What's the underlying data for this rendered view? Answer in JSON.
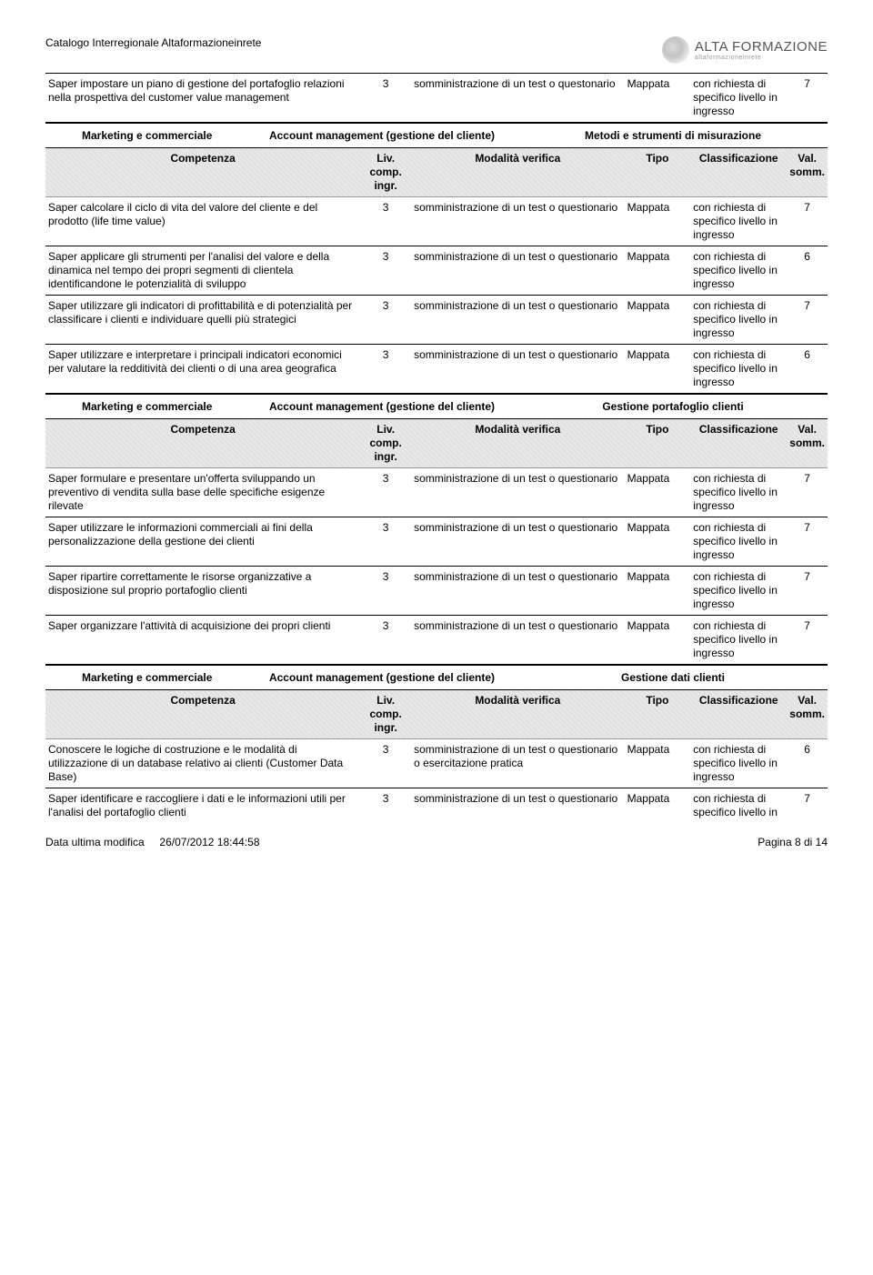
{
  "doc_title": "Catalogo Interregionale Altaformazioneinrete",
  "brand": {
    "main": "ALTA FORMAZIONE",
    "sub": "altaformazioneinrete"
  },
  "col_headers": {
    "competenza": "Competenza",
    "liv": "Liv. comp. ingr.",
    "modalita": "Modalità verifica",
    "tipo": "Tipo",
    "class": "Classificazione",
    "val": "Val. somm."
  },
  "top_row": {
    "competenza": "Saper impostare un piano di gestione del portafoglio relazioni nella prospettiva del customer value management",
    "liv": "3",
    "modalita": "somministrazione di un test o questonario",
    "tipo": "Mappata",
    "class": "con richiesta di specifico livello in ingresso",
    "val": "7"
  },
  "sections": [
    {
      "h1": "Marketing e commerciale",
      "h2": "Account management (gestione del cliente)",
      "h3": "Metodi e strumenti di misurazione",
      "rows": [
        {
          "competenza": "Saper calcolare il ciclo di vita del valore del cliente e del prodotto (life time value)",
          "liv": "3",
          "modalita": "somministrazione di un test o questionario",
          "tipo": "Mappata",
          "class": "con richiesta di specifico livello in ingresso",
          "val": "7"
        },
        {
          "competenza": "Saper applicare gli strumenti per l'analisi del valore e della dinamica nel tempo dei propri segmenti di clientela identificandone le potenzialità di sviluppo",
          "liv": "3",
          "modalita": "somministrazione di un test o questionario",
          "tipo": "Mappata",
          "class": "con richiesta di specifico livello in ingresso",
          "val": "6"
        },
        {
          "competenza": "Saper utilizzare gli indicatori di profittabilità e di potenzialità per classificare i clienti e individuare quelli più strategici",
          "liv": "3",
          "modalita": "somministrazione di un test o questionario",
          "tipo": "Mappata",
          "class": "con richiesta di specifico livello in ingresso",
          "val": "7"
        },
        {
          "competenza": "Saper utilizzare e interpretare i principali indicatori economici per valutare la redditività dei clienti o di una area geografica",
          "liv": "3",
          "modalita": "somministrazione di un test o questionario",
          "tipo": "Mappata",
          "class": "con richiesta di specifico livello in ingresso",
          "val": "6"
        }
      ]
    },
    {
      "h1": "Marketing e commerciale",
      "h2": "Account management (gestione del cliente)",
      "h3": "Gestione portafoglio clienti",
      "rows": [
        {
          "competenza": "Saper formulare e presentare un'offerta sviluppando un preventivo di vendita sulla base delle specifiche esigenze rilevate",
          "liv": "3",
          "modalita": "somministrazione di un test o questionario",
          "tipo": "Mappata",
          "class": "con richiesta di specifico livello in ingresso",
          "val": "7"
        },
        {
          "competenza": "Saper utilizzare le informazioni commerciali ai fini della personalizzazione della gestione dei clienti",
          "liv": "3",
          "modalita": "somministrazione di un test o questionario",
          "tipo": "Mappata",
          "class": "con richiesta di specifico livello in ingresso",
          "val": "7"
        },
        {
          "competenza": "Saper ripartire correttamente le risorse organizzative a disposizione sul proprio portafoglio clienti",
          "liv": "3",
          "modalita": "somministrazione di un test o questionario",
          "tipo": "Mappata",
          "class": "con richiesta di specifico livello in ingresso",
          "val": "7"
        },
        {
          "competenza": "Saper organizzare l'attività di acquisizione dei propri clienti",
          "liv": "3",
          "modalita": "somministrazione di un test o questionario",
          "tipo": "Mappata",
          "class": "con richiesta di specifico livello in ingresso",
          "val": "7"
        }
      ]
    },
    {
      "h1": "Marketing e commerciale",
      "h2": "Account management (gestione del cliente)",
      "h3": "Gestione dati clienti",
      "rows": [
        {
          "competenza": "Conoscere le logiche di costruzione e le modalità di utilizzazione di un database relativo ai clienti (Customer Data Base)",
          "liv": "3",
          "modalita": "somministrazione di un test o questionario o esercitazione pratica",
          "tipo": "Mappata",
          "class": "con richiesta di specifico livello in ingresso",
          "val": "6"
        },
        {
          "competenza": "Saper identificare e raccogliere i dati e le informazioni utili per l'analisi del portafoglio clienti",
          "liv": "3",
          "modalita": "somministrazione di un test o questionario",
          "tipo": "Mappata",
          "class": "con richiesta di specifico livello in",
          "val": "7"
        }
      ]
    }
  ],
  "footer": {
    "left_label": "Data ultima modifica",
    "left_value": "26/07/2012 18:44:58",
    "right": "Pagina 8 di 14"
  }
}
